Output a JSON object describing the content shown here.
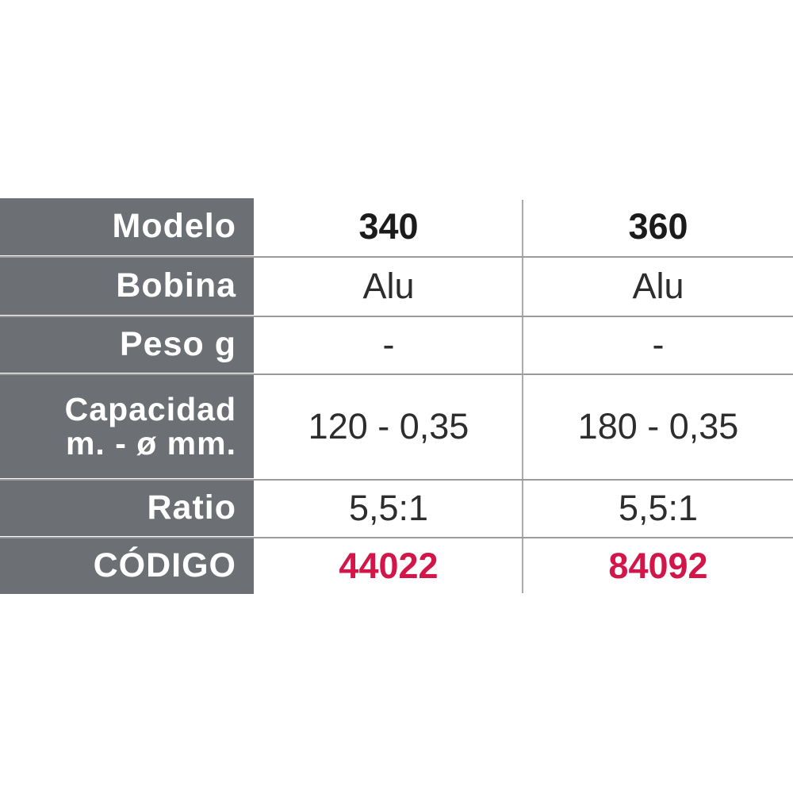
{
  "table": {
    "rows": [
      {
        "label": "Modelo",
        "values": [
          "340",
          "360"
        ]
      },
      {
        "label": "Bobina",
        "values": [
          "Alu",
          "Alu"
        ]
      },
      {
        "label": "Peso g",
        "values": [
          "-",
          "-"
        ]
      },
      {
        "label_line1": "Capacidad",
        "label_line2": "m. - ø mm.",
        "values": [
          "120 - 0,35",
          "180 - 0,35"
        ]
      },
      {
        "label": "Ratio",
        "values": [
          "5,5:1",
          "5,5:1"
        ]
      },
      {
        "label": "CÓDIGO",
        "values": [
          "44022",
          "84092"
        ]
      }
    ]
  },
  "colors": {
    "label_bg": "#6c7074",
    "label_text": "#ffffff",
    "value_text": "#2d2d2d",
    "header_value_text": "#1b1b1b",
    "code_text": "#d2164a",
    "grid_line": "#9b9b9b",
    "page_bg": "#ffffff"
  }
}
